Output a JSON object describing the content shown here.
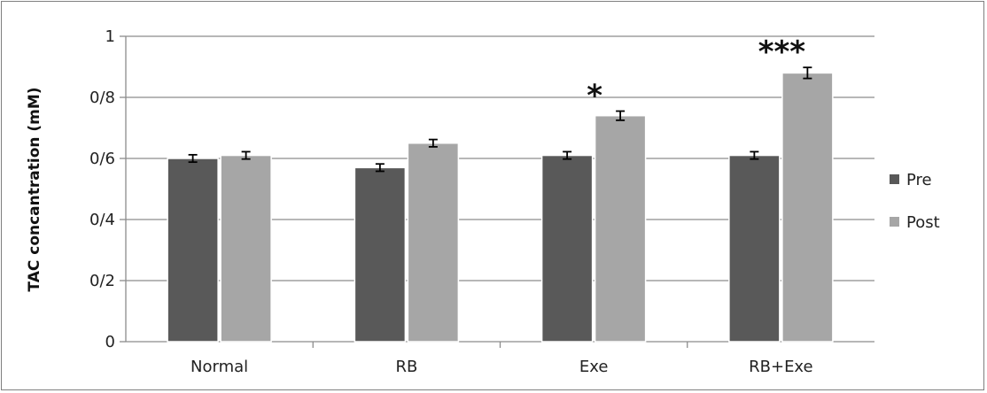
{
  "chart_data": {
    "type": "bar",
    "title": "",
    "xlabel": "",
    "ylabel": "TAC concantration (mM)",
    "categories": [
      "Normal",
      "RB",
      "Exe",
      "RB+Exe"
    ],
    "series": [
      {
        "name": "Pre",
        "values": [
          0.6,
          0.57,
          0.61,
          0.61
        ],
        "errors": [
          0.012,
          0.012,
          0.012,
          0.012
        ],
        "color": "#595959"
      },
      {
        "name": "Post",
        "values": [
          0.61,
          0.65,
          0.74,
          0.88
        ],
        "errors": [
          0.012,
          0.012,
          0.015,
          0.018
        ],
        "color": "#a6a6a6"
      }
    ],
    "ylim": [
      0,
      1
    ],
    "yticks": [
      0,
      0.2,
      0.4,
      0.6,
      0.8,
      1
    ],
    "ytick_labels": [
      "0",
      "0/2",
      "0/4",
      "0/6",
      "0/8",
      "1"
    ],
    "grid": true,
    "legend_position": "right",
    "annotations": [
      {
        "category": "Exe",
        "series": "Post",
        "text": "*"
      },
      {
        "category": "RB+Exe",
        "series": "Post",
        "text": "***"
      }
    ]
  }
}
